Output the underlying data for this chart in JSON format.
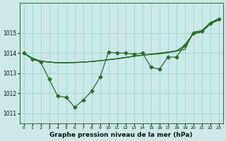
{
  "bg_color": "#cce8e8",
  "grid_color": "#99cccc",
  "line_color": "#2d6e2d",
  "xlabel": "Graphe pression niveau de la mer (hPa)",
  "ylim": [
    1010.5,
    1016.5
  ],
  "yticks": [
    1011,
    1012,
    1013,
    1014,
    1015
  ],
  "xlim": [
    -0.5,
    23.5
  ],
  "xticks": [
    0,
    1,
    2,
    3,
    4,
    5,
    6,
    7,
    8,
    9,
    10,
    11,
    12,
    13,
    14,
    15,
    16,
    17,
    18,
    19,
    20,
    21,
    22,
    23
  ],
  "main_y": [
    1014.0,
    1013.7,
    1013.55,
    1012.7,
    1011.85,
    1011.8,
    1011.3,
    1011.65,
    1012.1,
    1012.8,
    1014.05,
    1014.0,
    1014.0,
    1013.95,
    1014.0,
    1013.3,
    1013.2,
    1013.8,
    1013.8,
    1014.4,
    1015.0,
    1015.1,
    1015.5,
    1015.7
  ],
  "smooth1": [
    1014.0,
    1013.75,
    1013.6,
    1013.55,
    1013.52,
    1013.52,
    1013.53,
    1013.55,
    1013.58,
    1013.62,
    1013.67,
    1013.72,
    1013.78,
    1013.84,
    1013.9,
    1013.95,
    1014.0,
    1014.05,
    1014.1,
    1014.18,
    1015.05,
    1015.12,
    1015.52,
    1015.72
  ],
  "smooth2": [
    1014.0,
    1013.75,
    1013.6,
    1013.55,
    1013.52,
    1013.52,
    1013.53,
    1013.55,
    1013.58,
    1013.62,
    1013.67,
    1013.72,
    1013.78,
    1013.84,
    1013.9,
    1013.94,
    1013.98,
    1014.04,
    1014.12,
    1014.3,
    1015.0,
    1015.08,
    1015.48,
    1015.68
  ],
  "smooth3": [
    1014.0,
    1013.75,
    1013.6,
    1013.55,
    1013.52,
    1013.52,
    1013.53,
    1013.55,
    1013.58,
    1013.62,
    1013.67,
    1013.72,
    1013.78,
    1013.84,
    1013.9,
    1013.93,
    1013.96,
    1014.02,
    1014.1,
    1014.4,
    1014.95,
    1015.05,
    1015.45,
    1015.65
  ]
}
